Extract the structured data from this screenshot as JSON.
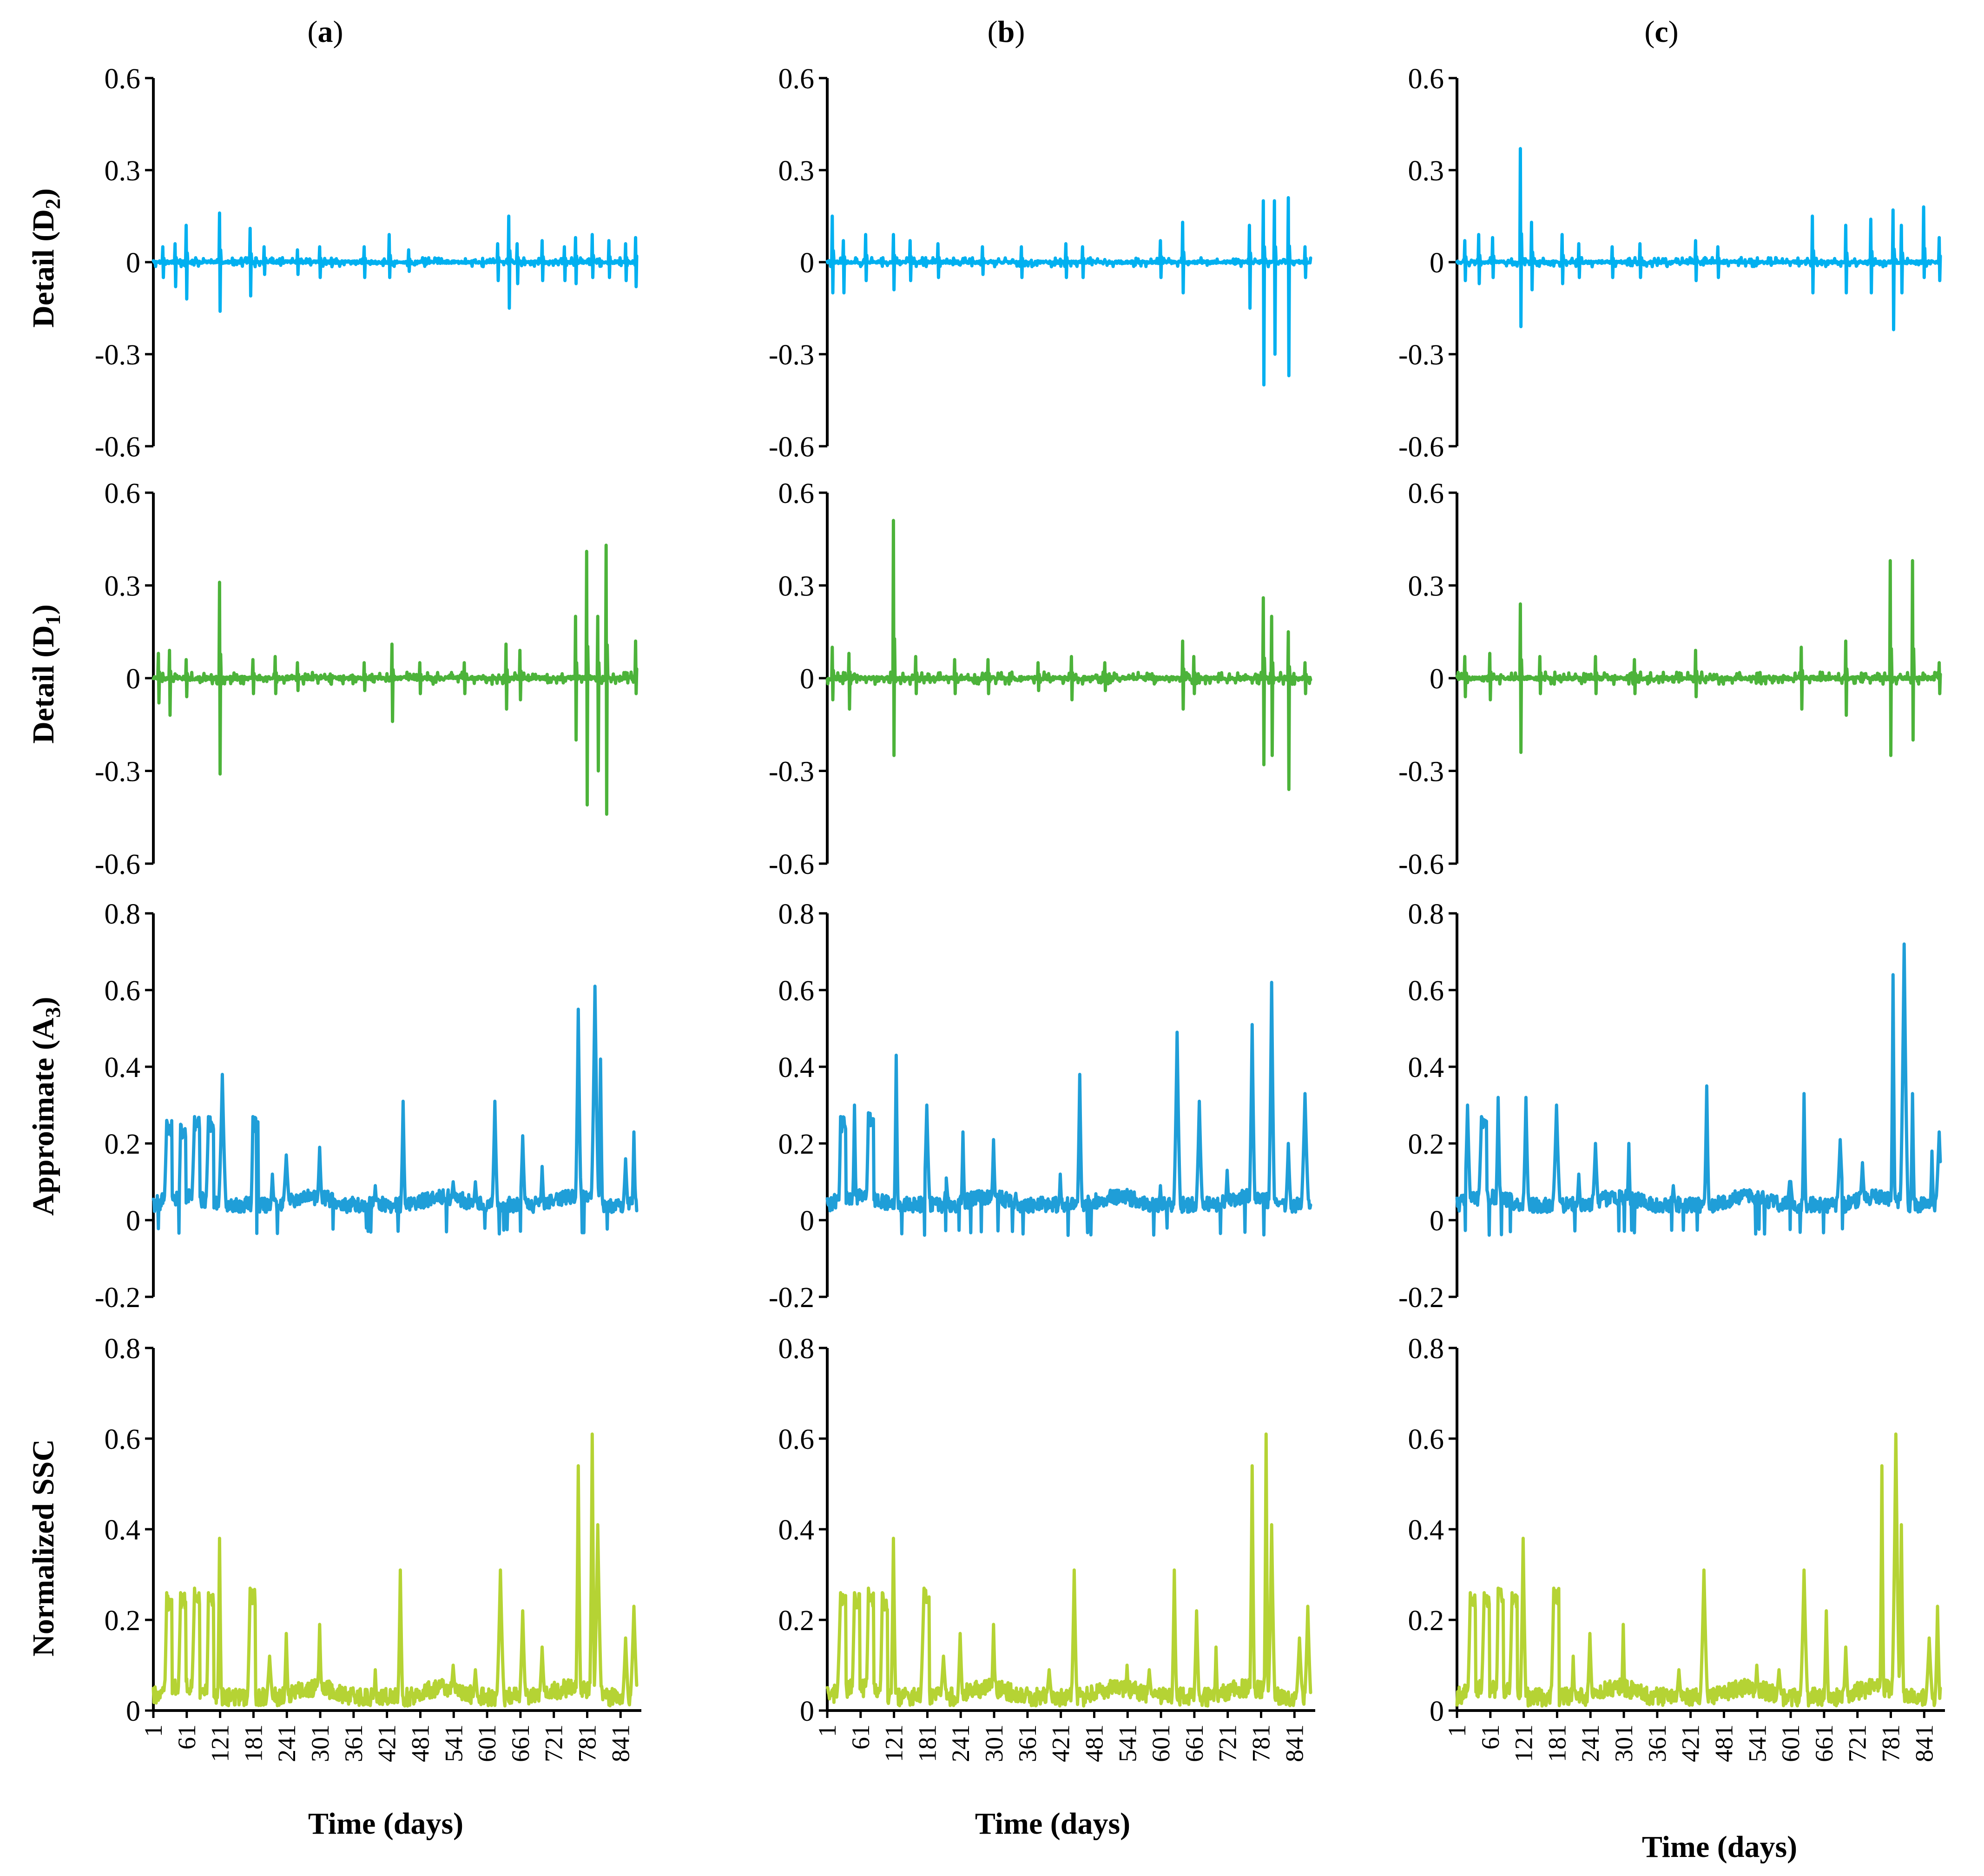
{
  "figure": {
    "column_titles": [
      {
        "letter": "a",
        "open": "(",
        "close": ")"
      },
      {
        "letter": "b",
        "open": "(",
        "close": ")"
      },
      {
        "letter": "c",
        "open": "(",
        "close": ")"
      }
    ],
    "xlabel": "Time (days)",
    "x_ticks": [
      "1",
      "61",
      "121",
      "181",
      "241",
      "301",
      "361",
      "421",
      "481",
      "541",
      "601",
      "661",
      "721",
      "781",
      "841"
    ],
    "rows": [
      {
        "key": "D2",
        "ylabel_main": "Detail (D",
        "ylabel_sub": "2",
        "ylabel_end": ")"
      },
      {
        "key": "D1",
        "ylabel_main": "Detail (D",
        "ylabel_sub": "1",
        "ylabel_end": ")"
      },
      {
        "key": "A3",
        "ylabel_main": "Approimate (A",
        "ylabel_sub": "3",
        "ylabel_end": ")"
      },
      {
        "key": "SSC",
        "ylabel_main": "Normalized SSC",
        "ylabel_sub": "",
        "ylabel_end": ""
      }
    ]
  },
  "colors": {
    "D2": "#00b0f0",
    "D1": "#4cb33a",
    "A3": "#1f9ed8",
    "SSC": "#b5d334",
    "axis": "#000000"
  },
  "chart_data": [
    {
      "type": "line",
      "panel": "a",
      "component": "D2",
      "series_name": "Detail (D2)",
      "ylim": [
        -0.6,
        0.6
      ],
      "yticks": [
        "0.6",
        "0.3",
        "0",
        "-0.3",
        "-0.6"
      ],
      "xlim": [
        1,
        870
      ],
      "spikes": [
        [
          18,
          0.05,
          -0.05
        ],
        [
          40,
          0.06,
          -0.08
        ],
        [
          60,
          0.12,
          -0.12
        ],
        [
          120,
          0.16,
          -0.16
        ],
        [
          175,
          0.11,
          -0.11
        ],
        [
          200,
          0.05,
          -0.04
        ],
        [
          260,
          0.04,
          -0.04
        ],
        [
          300,
          0.05,
          -0.05
        ],
        [
          380,
          0.05,
          -0.05
        ],
        [
          425,
          0.09,
          -0.05
        ],
        [
          460,
          0.04,
          -0.03
        ],
        [
          620,
          0.06,
          -0.06
        ],
        [
          640,
          0.15,
          -0.15
        ],
        [
          655,
          0.06,
          -0.07
        ],
        [
          700,
          0.07,
          -0.06
        ],
        [
          740,
          0.05,
          -0.06
        ],
        [
          760,
          0.08,
          -0.07
        ],
        [
          790,
          0.09,
          -0.05
        ],
        [
          820,
          0.07,
          -0.05
        ],
        [
          850,
          0.06,
          -0.06
        ],
        [
          868,
          0.08,
          -0.08
        ]
      ],
      "noise_amplitude": 0.015
    },
    {
      "type": "line",
      "panel": "b",
      "component": "D2",
      "series_name": "Detail (D2)",
      "ylim": [
        -0.6,
        0.6
      ],
      "yticks": [
        "0.6",
        "0.3",
        "0",
        "-0.3",
        "-0.6"
      ],
      "xlim": [
        1,
        870
      ],
      "spikes": [
        [
          10,
          0.15,
          -0.1
        ],
        [
          30,
          0.07,
          -0.1
        ],
        [
          70,
          0.09,
          -0.06
        ],
        [
          120,
          0.09,
          -0.09
        ],
        [
          150,
          0.07,
          -0.06
        ],
        [
          200,
          0.06,
          -0.05
        ],
        [
          280,
          0.05,
          -0.04
        ],
        [
          350,
          0.05,
          -0.05
        ],
        [
          430,
          0.06,
          -0.05
        ],
        [
          460,
          0.05,
          -0.05
        ],
        [
          600,
          0.07,
          -0.05
        ],
        [
          640,
          0.13,
          -0.1
        ],
        [
          760,
          0.12,
          -0.15
        ],
        [
          785,
          0.2,
          -0.4
        ],
        [
          805,
          0.2,
          -0.3
        ],
        [
          830,
          0.21,
          -0.37
        ],
        [
          860,
          0.05,
          -0.05
        ]
      ],
      "noise_amplitude": 0.015
    },
    {
      "type": "line",
      "panel": "c",
      "component": "D2",
      "series_name": "Detail (D2)",
      "ylim": [
        -0.6,
        0.6
      ],
      "yticks": [
        "0.6",
        "0.3",
        "0",
        "-0.3",
        "-0.6"
      ],
      "xlim": [
        1,
        870
      ],
      "spikes": [
        [
          15,
          0.07,
          -0.06
        ],
        [
          40,
          0.09,
          -0.07
        ],
        [
          65,
          0.08,
          -0.05
        ],
        [
          115,
          0.37,
          -0.21
        ],
        [
          135,
          0.13,
          -0.09
        ],
        [
          190,
          0.09,
          -0.07
        ],
        [
          220,
          0.06,
          -0.05
        ],
        [
          280,
          0.05,
          -0.05
        ],
        [
          330,
          0.06,
          -0.05
        ],
        [
          430,
          0.07,
          -0.06
        ],
        [
          470,
          0.05,
          -0.05
        ],
        [
          640,
          0.15,
          -0.1
        ],
        [
          700,
          0.12,
          -0.1
        ],
        [
          745,
          0.14,
          -0.1
        ],
        [
          785,
          0.17,
          -0.22
        ],
        [
          800,
          0.12,
          -0.1
        ],
        [
          840,
          0.18,
          -0.05
        ],
        [
          868,
          0.08,
          -0.06
        ]
      ],
      "noise_amplitude": 0.015
    },
    {
      "type": "line",
      "panel": "a",
      "component": "D1",
      "series_name": "Detail (D1)",
      "ylim": [
        -0.6,
        0.6
      ],
      "yticks": [
        "0.6",
        "0.3",
        "0",
        "-0.3",
        "-0.6"
      ],
      "xlim": [
        1,
        870
      ],
      "spikes": [
        [
          10,
          0.08,
          -0.08
        ],
        [
          30,
          0.09,
          -0.12
        ],
        [
          60,
          0.06,
          -0.06
        ],
        [
          120,
          0.31,
          -0.31
        ],
        [
          180,
          0.06,
          -0.05
        ],
        [
          220,
          0.07,
          -0.05
        ],
        [
          260,
          0.05,
          -0.04
        ],
        [
          380,
          0.05,
          -0.04
        ],
        [
          430,
          0.11,
          -0.14
        ],
        [
          480,
          0.05,
          -0.05
        ],
        [
          560,
          0.05,
          -0.05
        ],
        [
          635,
          0.11,
          -0.1
        ],
        [
          660,
          0.09,
          -0.07
        ],
        [
          760,
          0.2,
          -0.2
        ],
        [
          780,
          0.41,
          -0.41
        ],
        [
          800,
          0.2,
          -0.3
        ],
        [
          815,
          0.43,
          -0.44
        ],
        [
          868,
          0.12,
          -0.05
        ]
      ],
      "noise_amplitude": 0.02
    },
    {
      "type": "line",
      "panel": "b",
      "component": "D1",
      "series_name": "Detail (D1)",
      "ylim": [
        -0.6,
        0.6
      ],
      "yticks": [
        "0.6",
        "0.3",
        "0",
        "-0.3",
        "-0.6"
      ],
      "xlim": [
        1,
        870
      ],
      "spikes": [
        [
          10,
          0.1,
          -0.07
        ],
        [
          40,
          0.08,
          -0.1
        ],
        [
          120,
          0.51,
          -0.25
        ],
        [
          160,
          0.07,
          -0.05
        ],
        [
          230,
          0.06,
          -0.05
        ],
        [
          290,
          0.06,
          -0.05
        ],
        [
          380,
          0.05,
          -0.04
        ],
        [
          440,
          0.07,
          -0.07
        ],
        [
          500,
          0.05,
          -0.04
        ],
        [
          640,
          0.12,
          -0.1
        ],
        [
          660,
          0.07,
          -0.05
        ],
        [
          785,
          0.26,
          -0.28
        ],
        [
          800,
          0.2,
          -0.25
        ],
        [
          830,
          0.15,
          -0.36
        ],
        [
          860,
          0.05,
          -0.05
        ]
      ],
      "noise_amplitude": 0.02
    },
    {
      "type": "line",
      "panel": "c",
      "component": "D1",
      "series_name": "Detail (D1)",
      "ylim": [
        -0.6,
        0.6
      ],
      "yticks": [
        "0.6",
        "0.3",
        "0",
        "-0.3",
        "-0.6"
      ],
      "xlim": [
        1,
        870
      ],
      "spikes": [
        [
          15,
          0.07,
          -0.06
        ],
        [
          60,
          0.08,
          -0.07
        ],
        [
          115,
          0.24,
          -0.24
        ],
        [
          150,
          0.07,
          -0.05
        ],
        [
          250,
          0.07,
          -0.05
        ],
        [
          320,
          0.06,
          -0.05
        ],
        [
          430,
          0.09,
          -0.06
        ],
        [
          620,
          0.1,
          -0.1
        ],
        [
          700,
          0.12,
          -0.12
        ],
        [
          780,
          0.38,
          -0.25
        ],
        [
          820,
          0.38,
          -0.2
        ],
        [
          868,
          0.05,
          -0.05
        ]
      ],
      "noise_amplitude": 0.02
    },
    {
      "type": "line",
      "panel": "a",
      "component": "A3",
      "series_name": "Approimate (A3)",
      "ylim": [
        -0.2,
        0.8
      ],
      "yticks": [
        "0.8",
        "0.6",
        "0.4",
        "0.2",
        "0",
        "-0.2"
      ],
      "xlim": [
        1,
        870
      ],
      "peaks": [
        [
          25,
          0.26
        ],
        [
          50,
          0.25
        ],
        [
          75,
          0.27
        ],
        [
          100,
          0.27
        ],
        [
          125,
          0.38
        ],
        [
          180,
          0.27
        ],
        [
          215,
          0.12
        ],
        [
          240,
          0.17
        ],
        [
          300,
          0.19
        ],
        [
          360,
          0.05
        ],
        [
          400,
          0.09
        ],
        [
          450,
          0.31
        ],
        [
          540,
          0.1
        ],
        [
          580,
          0.1
        ],
        [
          615,
          0.31
        ],
        [
          665,
          0.22
        ],
        [
          700,
          0.14
        ],
        [
          765,
          0.55
        ],
        [
          795,
          0.61
        ],
        [
          805,
          0.42
        ],
        [
          850,
          0.16
        ],
        [
          865,
          0.23
        ]
      ],
      "baseline": 0.02
    },
    {
      "type": "line",
      "panel": "b",
      "component": "A3",
      "series_name": "Approimate (A3)",
      "ylim": [
        -0.2,
        0.8
      ],
      "yticks": [
        "0.8",
        "0.6",
        "0.4",
        "0.2",
        "0",
        "-0.2"
      ],
      "xlim": [
        1,
        870
      ],
      "peaks": [
        [
          25,
          0.27
        ],
        [
          50,
          0.3
        ],
        [
          75,
          0.28
        ],
        [
          125,
          0.43
        ],
        [
          180,
          0.3
        ],
        [
          215,
          0.11
        ],
        [
          245,
          0.23
        ],
        [
          300,
          0.21
        ],
        [
          340,
          0.07
        ],
        [
          420,
          0.12
        ],
        [
          455,
          0.38
        ],
        [
          540,
          0.08
        ],
        [
          600,
          0.09
        ],
        [
          630,
          0.49
        ],
        [
          670,
          0.31
        ],
        [
          720,
          0.13
        ],
        [
          765,
          0.51
        ],
        [
          800,
          0.62
        ],
        [
          830,
          0.2
        ],
        [
          860,
          0.33
        ]
      ],
      "baseline": 0.02
    },
    {
      "type": "line",
      "panel": "c",
      "component": "A3",
      "series_name": "Approimate (A3)",
      "ylim": [
        -0.2,
        0.8
      ],
      "yticks": [
        "0.8",
        "0.6",
        "0.4",
        "0.2",
        "0",
        "-0.2"
      ],
      "xlim": [
        1,
        870
      ],
      "peaks": [
        [
          20,
          0.3
        ],
        [
          45,
          0.27
        ],
        [
          75,
          0.32
        ],
        [
          125,
          0.32
        ],
        [
          180,
          0.3
        ],
        [
          220,
          0.12
        ],
        [
          250,
          0.2
        ],
        [
          310,
          0.2
        ],
        [
          390,
          0.09
        ],
        [
          450,
          0.35
        ],
        [
          530,
          0.07
        ],
        [
          600,
          0.12
        ],
        [
          625,
          0.33
        ],
        [
          690,
          0.21
        ],
        [
          730,
          0.15
        ],
        [
          785,
          0.64
        ],
        [
          805,
          0.72
        ],
        [
          820,
          0.33
        ],
        [
          855,
          0.18
        ],
        [
          868,
          0.23
        ]
      ],
      "baseline": 0.02
    },
    {
      "type": "line",
      "panel": "a",
      "component": "SSC",
      "series_name": "Normalized SSC",
      "ylim": [
        0,
        0.8
      ],
      "yticks": [
        "0.8",
        "0.6",
        "0.4",
        "0.2",
        "0"
      ],
      "xlim": [
        1,
        870
      ],
      "peaks": [
        [
          25,
          0.26
        ],
        [
          50,
          0.26
        ],
        [
          75,
          0.27
        ],
        [
          100,
          0.26
        ],
        [
          120,
          0.38
        ],
        [
          175,
          0.27
        ],
        [
          210,
          0.12
        ],
        [
          240,
          0.17
        ],
        [
          300,
          0.19
        ],
        [
          360,
          0.05
        ],
        [
          400,
          0.09
        ],
        [
          445,
          0.31
        ],
        [
          540,
          0.1
        ],
        [
          580,
          0.09
        ],
        [
          625,
          0.31
        ],
        [
          665,
          0.22
        ],
        [
          700,
          0.14
        ],
        [
          765,
          0.54
        ],
        [
          790,
          0.61
        ],
        [
          800,
          0.41
        ],
        [
          850,
          0.16
        ],
        [
          865,
          0.23
        ]
      ],
      "baseline": 0.01
    },
    {
      "type": "line",
      "panel": "b",
      "component": "SSC",
      "series_name": "Normalized SSC",
      "ylim": [
        0,
        0.8
      ],
      "yticks": [
        "0.8",
        "0.6",
        "0.4",
        "0.2",
        "0"
      ],
      "xlim": [
        1,
        870
      ],
      "peaks": [
        [
          25,
          0.26
        ],
        [
          50,
          0.26
        ],
        [
          75,
          0.27
        ],
        [
          100,
          0.26
        ],
        [
          120,
          0.38
        ],
        [
          175,
          0.27
        ],
        [
          210,
          0.12
        ],
        [
          240,
          0.17
        ],
        [
          300,
          0.19
        ],
        [
          360,
          0.05
        ],
        [
          400,
          0.09
        ],
        [
          445,
          0.31
        ],
        [
          540,
          0.1
        ],
        [
          580,
          0.09
        ],
        [
          625,
          0.31
        ],
        [
          665,
          0.22
        ],
        [
          700,
          0.14
        ],
        [
          765,
          0.54
        ],
        [
          790,
          0.61
        ],
        [
          800,
          0.41
        ],
        [
          850,
          0.16
        ],
        [
          865,
          0.23
        ]
      ],
      "baseline": 0.01
    },
    {
      "type": "line",
      "panel": "c",
      "component": "SSC",
      "series_name": "Normalized SSC",
      "ylim": [
        0,
        0.8
      ],
      "yticks": [
        "0.8",
        "0.6",
        "0.4",
        "0.2",
        "0"
      ],
      "xlim": [
        1,
        870
      ],
      "peaks": [
        [
          25,
          0.26
        ],
        [
          50,
          0.26
        ],
        [
          75,
          0.27
        ],
        [
          100,
          0.26
        ],
        [
          120,
          0.38
        ],
        [
          175,
          0.27
        ],
        [
          210,
          0.12
        ],
        [
          240,
          0.17
        ],
        [
          300,
          0.19
        ],
        [
          360,
          0.05
        ],
        [
          400,
          0.09
        ],
        [
          445,
          0.31
        ],
        [
          540,
          0.1
        ],
        [
          580,
          0.09
        ],
        [
          625,
          0.31
        ],
        [
          665,
          0.22
        ],
        [
          700,
          0.14
        ],
        [
          765,
          0.54
        ],
        [
          790,
          0.61
        ],
        [
          800,
          0.41
        ],
        [
          850,
          0.16
        ],
        [
          865,
          0.23
        ]
      ],
      "baseline": 0.01
    }
  ]
}
